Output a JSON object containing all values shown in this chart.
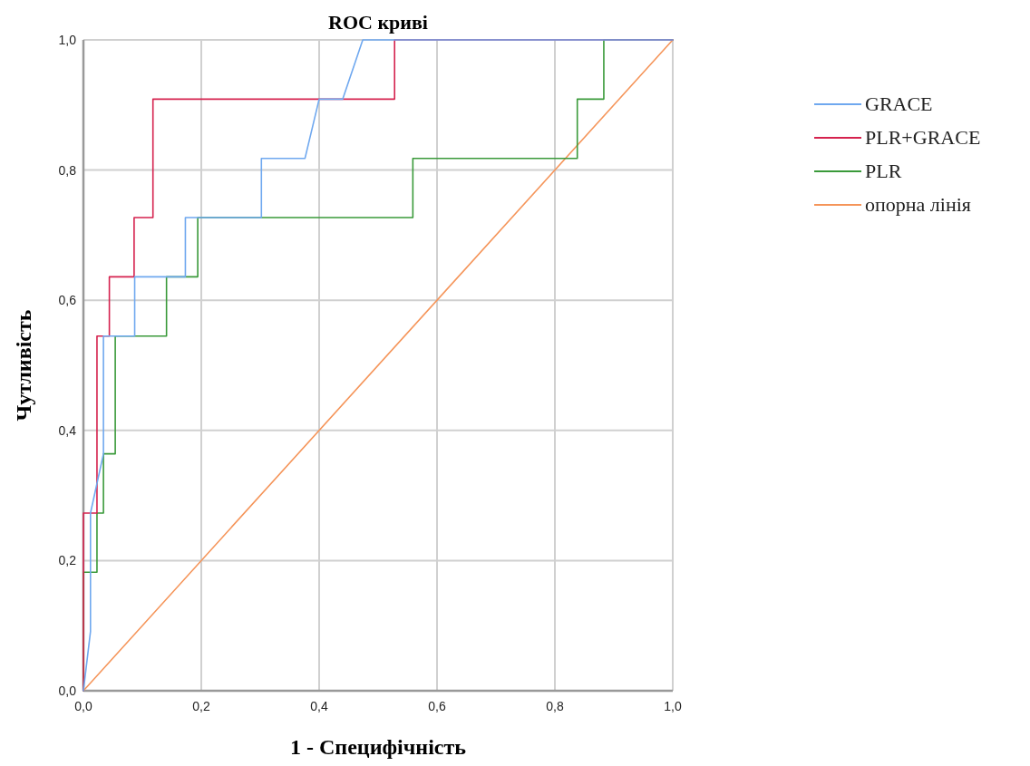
{
  "chart_data": {
    "type": "line",
    "title": "ROC криві",
    "xlabel": "1 - Специфічність",
    "ylabel": "Чутливість",
    "xlim": [
      0,
      1
    ],
    "ylim": [
      0,
      1
    ],
    "xticks": [
      {
        "value": 0,
        "label": "0,0"
      },
      {
        "value": 0.2,
        "label": "0,2"
      },
      {
        "value": 0.4,
        "label": "0,4"
      },
      {
        "value": 0.6,
        "label": "0,6"
      },
      {
        "value": 0.8,
        "label": "0,8"
      },
      {
        "value": 1,
        "label": "1,0"
      }
    ],
    "yticks": [
      {
        "value": 0,
        "label": "0,0"
      },
      {
        "value": 0.2,
        "label": "0,2"
      },
      {
        "value": 0.4,
        "label": "0,4"
      },
      {
        "value": 0.6,
        "label": "0,6"
      },
      {
        "value": 0.8,
        "label": "0,8"
      },
      {
        "value": 1,
        "label": "1,0"
      }
    ],
    "grid": true,
    "legend": "right",
    "marker": "none",
    "line_style": "solid",
    "series": [
      {
        "name": "GRACE",
        "color": "#6fa8ef",
        "x": [
          0,
          0.012,
          0.012,
          0.034,
          0.034,
          0.087,
          0.087,
          0.173,
          0.173,
          0.302,
          0.302,
          0.376,
          0.4,
          0.44,
          0.474,
          1
        ],
        "values": [
          0,
          0.091,
          0.273,
          0.364,
          0.545,
          0.545,
          0.636,
          0.636,
          0.727,
          0.727,
          0.818,
          0.818,
          0.909,
          0.909,
          1,
          1
        ]
      },
      {
        "name": "PLR+GRACE",
        "color": "#d5224e",
        "x": [
          0,
          0,
          0.023,
          0.023,
          0.044,
          0.044,
          0.086,
          0.086,
          0.118,
          0.118,
          0.528,
          0.528,
          1
        ],
        "values": [
          0,
          0.273,
          0.273,
          0.545,
          0.545,
          0.636,
          0.636,
          0.727,
          0.727,
          0.909,
          0.909,
          1,
          1
        ]
      },
      {
        "name": "PLR",
        "color": "#3a9a3a",
        "x": [
          0,
          0,
          0.023,
          0.023,
          0.034,
          0.034,
          0.054,
          0.054,
          0.141,
          0.141,
          0.194,
          0.194,
          0.559,
          0.559,
          0.838,
          0.838,
          0.883,
          0.883,
          1
        ],
        "values": [
          0,
          0.182,
          0.182,
          0.273,
          0.273,
          0.364,
          0.364,
          0.545,
          0.545,
          0.636,
          0.636,
          0.727,
          0.727,
          0.818,
          0.818,
          0.909,
          0.909,
          1,
          1
        ]
      },
      {
        "name": "опорна лінія",
        "color": "#f5955a",
        "x": [
          0,
          1
        ],
        "values": [
          0,
          1
        ]
      }
    ]
  }
}
